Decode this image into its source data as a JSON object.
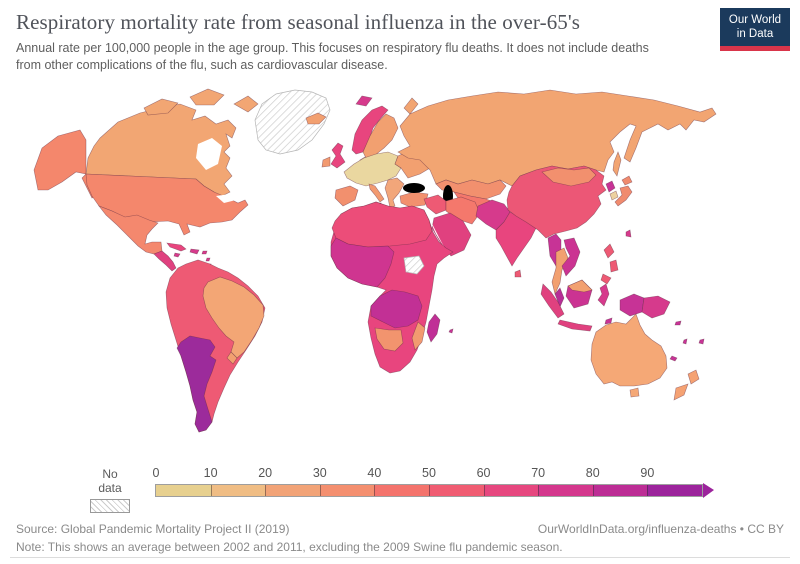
{
  "header": {
    "title": "Respiratory mortality rate from seasonal influenza in the over-65's",
    "subtitle": "Annual rate per 100,000 people in the age group. This focuses on respiratory flu deaths. It does not include deaths from other complications of the flu, such as cardiovascular disease.",
    "logo": {
      "line1": "Our World",
      "line2": "in Data",
      "bg": "#1b3a5c",
      "accent": "#d9354a"
    }
  },
  "legend": {
    "no_data_label": "No data",
    "ticks": [
      "0",
      "10",
      "20",
      "30",
      "40",
      "50",
      "60",
      "70",
      "80",
      "90"
    ],
    "segment_colors": [
      "#e7d08f",
      "#f0bd84",
      "#f2a377",
      "#f48f6f",
      "#f4736c",
      "#f05c72",
      "#e6477f",
      "#d4378d",
      "#bc2d95",
      "#9c249c"
    ],
    "arrow_color": "#9c249c"
  },
  "footer": {
    "source": "Source: Global Pandemic Mortality Project II (2019)",
    "link": "OurWorldInData.org/influenza-deaths • CC BY",
    "note": "Note: This shows an average between 2002 and 2011, excluding the 2009 Swine flu pandemic season."
  },
  "map": {
    "region_colors": {
      "canada": "#f2a673",
      "usa": "#f4876c",
      "mexico": "#f4886e",
      "central_america": "#e0417f",
      "cuba": "#e8457e",
      "hispaniola": "#d63a8c",
      "caribbean_small": "#d63a8c",
      "andes": "#ee5a74",
      "brazil": "#f3a675",
      "uruguay": "#f2a070",
      "argentina_chile": "#9c2b9b",
      "iceland": "#f2a070",
      "uk": "#e8457f",
      "ireland": "#f29a70",
      "norway": "#e8457e",
      "scandinavia": "#f2a070",
      "denmark": "#ead7a0",
      "europe_core": "#ead7a0",
      "iberia": "#f2906e",
      "italy": "#f29a70",
      "balkans": "#f2a67a",
      "east_europe": "#f2a070",
      "turkey": "#f2906e",
      "svalbard": "#d63a8c",
      "russia": "#f2a572",
      "kazakhstan": "#f2906e",
      "central_asia": "#f4786c",
      "iran": "#f4786c",
      "levant": "#ee5a74",
      "arabia": "#e0417f",
      "pakistan_afghanistan": "#d63a8c",
      "nepal": "#d63a8c",
      "india": "#e8457e",
      "sri_lanka": "#ee5a74",
      "china": "#ec5776",
      "mongolia": "#f2906e",
      "korea_north": "#c73396",
      "korea_south": "#ecd1a0",
      "japan": "#f08b6e",
      "taiwan": "#d63a8c",
      "myanmar": "#c73396",
      "thailand": "#f2a070",
      "indochina": "#cb3392",
      "malaysia": "#b72e97",
      "borneo_north": "#f2a070",
      "borneo_south": "#cb3392",
      "sumatra": "#e0417f",
      "java": "#e0417f",
      "sulawesi": "#d63a8c",
      "new_guinea_west": "#c73396",
      "new_guinea_east": "#d63a8c",
      "philippines": "#ee5a74",
      "pacific_islands": "#c73396",
      "australia": "#f5a876",
      "new_zealand": "#f5a273",
      "africa_base": "#e8457e",
      "north_africa": "#ec4d79",
      "west_africa": "#cf3590",
      "congo": "#c23095",
      "namibia_botswana": "#f2946e",
      "mozambique": "#f29a70",
      "madagascar": "#c02f96"
    }
  },
  "chart_data": {
    "type": "heatmap",
    "subtype": "choropleth-world-map",
    "title": "Respiratory mortality rate from seasonal influenza in the over-65's",
    "subtitle": "Annual rate per 100,000 people in the age group. This focuses on respiratory flu deaths. It does not include deaths from other complications of the flu, such as cardiovascular disease.",
    "unit": "annual deaths per 100,000 people aged 65+",
    "colorscale": {
      "bins": [
        "0-10",
        "10-20",
        "20-30",
        "30-40",
        "40-50",
        "50-60",
        "60-70",
        "70-80",
        "80-90",
        "90+"
      ],
      "colors": [
        "#e7d08f",
        "#f0bd84",
        "#f2a377",
        "#f48f6f",
        "#f4736c",
        "#f05c72",
        "#e6477f",
        "#d4378d",
        "#bc2d95",
        "#9c249c"
      ],
      "no_data": "hatched"
    },
    "legend_position": "bottom",
    "regions": [
      {
        "name": "Canada",
        "value_range": "20-30"
      },
      {
        "name": "United States",
        "value_range": "30-40"
      },
      {
        "name": "Greenland",
        "value_range": "No data"
      },
      {
        "name": "Mexico",
        "value_range": "30-40"
      },
      {
        "name": "Central America & Caribbean",
        "value_range": "60-80"
      },
      {
        "name": "Andean South America (Colombia, Peru, Bolivia)",
        "value_range": "40-50"
      },
      {
        "name": "Brazil",
        "value_range": "20-30"
      },
      {
        "name": "Uruguay",
        "value_range": "20-30"
      },
      {
        "name": "Argentina & Chile",
        "value_range": "90+"
      },
      {
        "name": "Western & Central Europe (France, Germany, Poland)",
        "value_range": "0-10"
      },
      {
        "name": "United Kingdom",
        "value_range": "60-70"
      },
      {
        "name": "Ireland, Iceland, Sweden, Finland",
        "value_range": "20-30"
      },
      {
        "name": "Norway",
        "value_range": "60-70"
      },
      {
        "name": "Spain, Portugal, Italy, Turkey",
        "value_range": "20-30"
      },
      {
        "name": "Russia & Kazakhstan",
        "value_range": "20-30"
      },
      {
        "name": "Iran & Central Asia",
        "value_range": "40-50"
      },
      {
        "name": "Levant (Iraq, Syria)",
        "value_range": "40-50"
      },
      {
        "name": "Saudi Arabia",
        "value_range": "60-70"
      },
      {
        "name": "North Africa (Algeria, Libya, Egypt)",
        "value_range": "50-60"
      },
      {
        "name": "Sub-Saharan Africa (general)",
        "value_range": "60-70"
      },
      {
        "name": "West Africa (Mali, Nigeria)",
        "value_range": "70-80"
      },
      {
        "name": "DR Congo, Angola, Zambia",
        "value_range": "80-90"
      },
      {
        "name": "Namibia, Botswana, Mozambique",
        "value_range": "20-30"
      },
      {
        "name": "South Sudan",
        "value_range": "No data"
      },
      {
        "name": "Madagascar",
        "value_range": "80-90"
      },
      {
        "name": "Pakistan & Afghanistan",
        "value_range": "70-80"
      },
      {
        "name": "India",
        "value_range": "60-70"
      },
      {
        "name": "China",
        "value_range": "50-60"
      },
      {
        "name": "Mongolia",
        "value_range": "30-40"
      },
      {
        "name": "North Korea",
        "value_range": "80-90"
      },
      {
        "name": "South Korea",
        "value_range": "0-10"
      },
      {
        "name": "Japan",
        "value_range": "30-40"
      },
      {
        "name": "Myanmar, Vietnam, Laos, Malaysia",
        "value_range": "80-90"
      },
      {
        "name": "Thailand",
        "value_range": "20-30"
      },
      {
        "name": "Indonesia",
        "value_range": "60-70"
      },
      {
        "name": "Philippines",
        "value_range": "40-50"
      },
      {
        "name": "Papua New Guinea",
        "value_range": "70-90"
      },
      {
        "name": "Australia & New Zealand",
        "value_range": "20-30"
      }
    ]
  }
}
